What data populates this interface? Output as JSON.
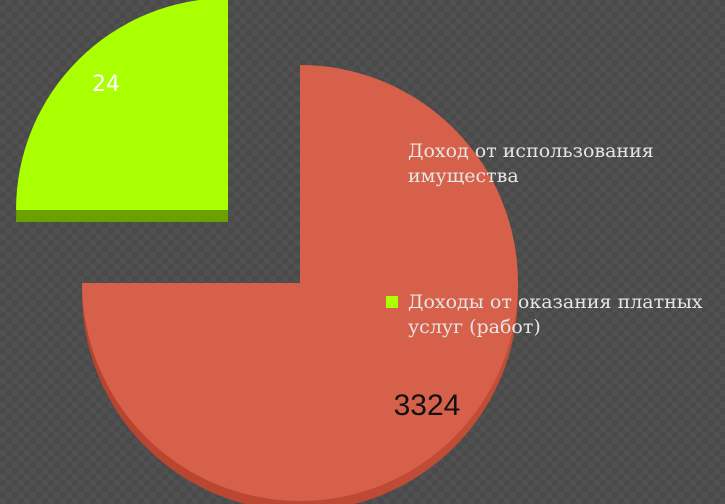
{
  "chart_data": {
    "type": "pie",
    "title": "",
    "series": [
      {
        "name": "Доход от использования имущества",
        "value": 24,
        "color": "#4a4a4a"
      },
      {
        "name": "Доходы от оказания платных услуг (работ)",
        "value": 3324,
        "color": "#d7604a"
      }
    ],
    "highlight_slice": {
      "label": "24",
      "color": "#aaff00"
    },
    "data_labels": [
      "24",
      "3324"
    ],
    "legend_position": "right",
    "style": "3d-exploded"
  }
}
